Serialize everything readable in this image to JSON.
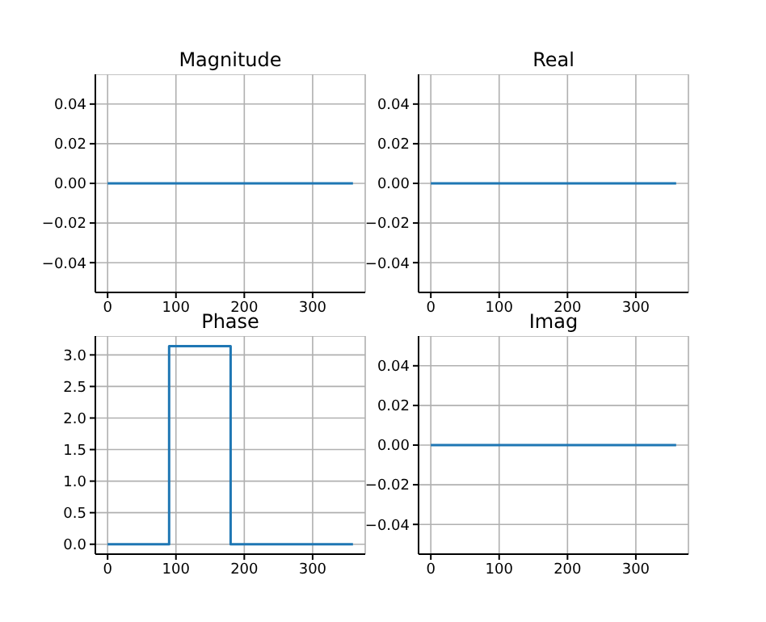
{
  "chart_data": [
    {
      "type": "line",
      "title": "Magnitude",
      "x": [
        0,
        359
      ],
      "values": [
        0,
        0
      ],
      "color": "#1f77b4",
      "xlim": [
        -17.95,
        376.95
      ],
      "xticks": [
        0,
        100,
        200,
        300
      ],
      "ylim": [
        -0.055,
        0.055
      ],
      "yticks": [
        {
          "value": -0.04,
          "label": "−0.04"
        },
        {
          "value": -0.02,
          "label": "−0.02"
        },
        {
          "value": 0,
          "label": "0.00"
        },
        {
          "value": 0.02,
          "label": "0.02"
        },
        {
          "value": 0.04,
          "label": "0.04"
        }
      ],
      "grid": true
    },
    {
      "type": "line",
      "title": "Real",
      "x": [
        0,
        359
      ],
      "values": [
        0,
        0
      ],
      "color": "#1f77b4",
      "xlim": [
        -17.95,
        376.95
      ],
      "xticks": [
        0,
        100,
        200,
        300
      ],
      "ylim": [
        -0.055,
        0.055
      ],
      "yticks": [
        {
          "value": -0.04,
          "label": "−0.04"
        },
        {
          "value": -0.02,
          "label": "−0.02"
        },
        {
          "value": 0,
          "label": "0.00"
        },
        {
          "value": 0.02,
          "label": "0.02"
        },
        {
          "value": 0.04,
          "label": "0.04"
        }
      ],
      "grid": true
    },
    {
      "type": "line",
      "title": "Phase",
      "x": [
        0,
        90,
        90,
        180,
        180,
        359
      ],
      "values": [
        0,
        0,
        3.14,
        3.14,
        0,
        0
      ],
      "color": "#1f77b4",
      "xlim": [
        -17.95,
        376.95
      ],
      "xticks": [
        0,
        100,
        200,
        300
      ],
      "ylim": [
        -0.157,
        3.299
      ],
      "yticks": [
        {
          "value": 0,
          "label": "0.0"
        },
        {
          "value": 0.5,
          "label": "0.5"
        },
        {
          "value": 1,
          "label": "1.0"
        },
        {
          "value": 1.5,
          "label": "1.5"
        },
        {
          "value": 2,
          "label": "2.0"
        },
        {
          "value": 2.5,
          "label": "2.5"
        },
        {
          "value": 3,
          "label": "3.0"
        }
      ],
      "grid": true
    },
    {
      "type": "line",
      "title": "Imag",
      "x": [
        0,
        359
      ],
      "values": [
        0,
        0
      ],
      "color": "#1f77b4",
      "xlim": [
        -17.95,
        376.95
      ],
      "xticks": [
        0,
        100,
        200,
        300
      ],
      "ylim": [
        -0.055,
        0.055
      ],
      "yticks": [
        {
          "value": -0.04,
          "label": "−0.04"
        },
        {
          "value": -0.02,
          "label": "−0.02"
        },
        {
          "value": 0,
          "label": "0.00"
        },
        {
          "value": 0.02,
          "label": "0.02"
        },
        {
          "value": 0.04,
          "label": "0.04"
        }
      ],
      "grid": true
    }
  ]
}
